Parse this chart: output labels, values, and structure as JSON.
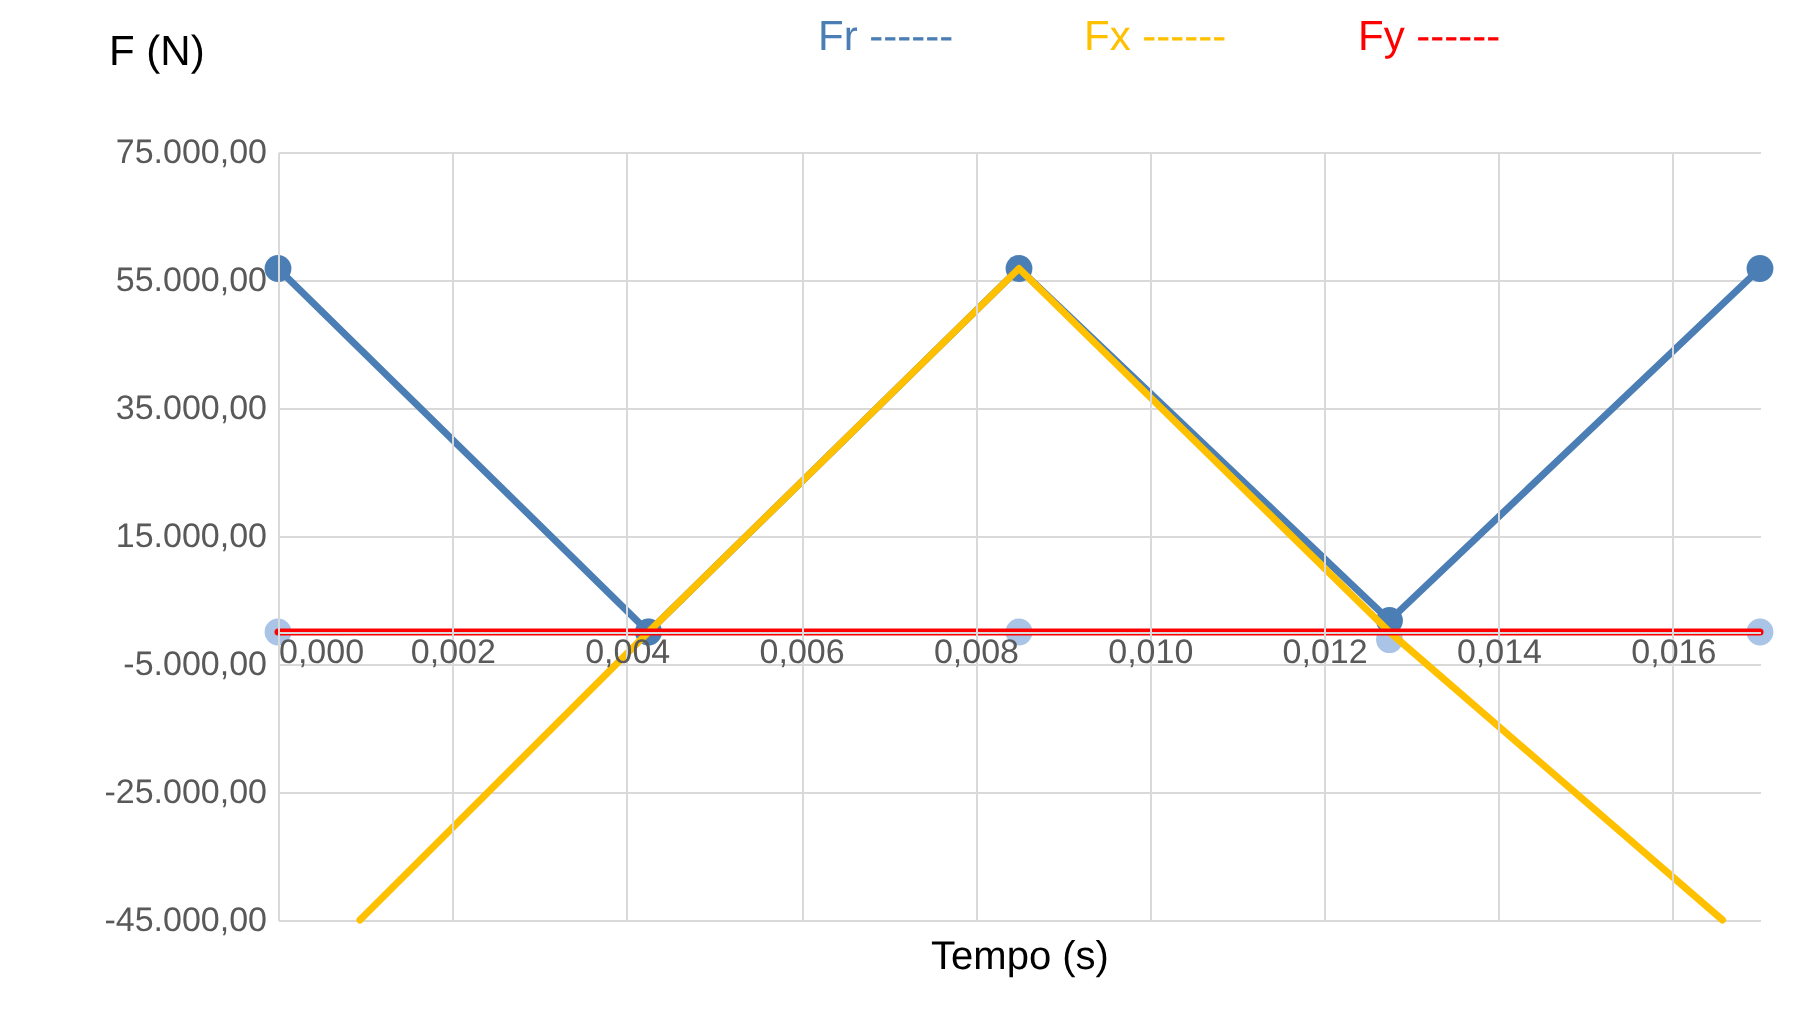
{
  "chart_data": {
    "type": "line",
    "xlabel": "Tempo (s)",
    "ylabel": "F (N)",
    "xlim": [
      0,
      0.017
    ],
    "ylim": [
      -45000,
      75000
    ],
    "xticks": [
      {
        "value": 0,
        "label": "0,000"
      },
      {
        "value": 0.002,
        "label": "0,002"
      },
      {
        "value": 0.004,
        "label": "0,004"
      },
      {
        "value": 0.006,
        "label": "0,006"
      },
      {
        "value": 0.008,
        "label": "0,008"
      },
      {
        "value": 0.01,
        "label": "0,010"
      },
      {
        "value": 0.012,
        "label": "0,012"
      },
      {
        "value": 0.014,
        "label": "0,014"
      },
      {
        "value": 0.016,
        "label": "0,016"
      }
    ],
    "yticks": [
      {
        "value": -45000,
        "label": "-45.000,00"
      },
      {
        "value": -25000,
        "label": "-25.000,00"
      },
      {
        "value": -5000,
        "label": "-5.000,00"
      },
      {
        "value": 15000,
        "label": "15.000,00"
      },
      {
        "value": 35000,
        "label": "35.000,00"
      },
      {
        "value": 55000,
        "label": "55.000,00"
      },
      {
        "value": 75000,
        "label": "75.000,00"
      }
    ],
    "grid": true,
    "legend": "top",
    "series": [
      {
        "type": "scatter",
        "color": "#a9c4e6",
        "marker": "circle",
        "x": [
          0,
          0.00425,
          0.0085,
          0.01275,
          0.017
        ],
        "values": [
          0,
          0,
          0,
          -1200,
          0
        ]
      },
      {
        "name": "Fr ------",
        "color": "#4a7eb4",
        "marker": "circle",
        "x": [
          0,
          0.00425,
          0.0085,
          0.01275,
          0.017
        ],
        "values": [
          56800,
          0,
          56800,
          1800,
          56800
        ]
      },
      {
        "name": "Fx ------",
        "color": "#ffc000",
        "marker": "none",
        "x": [
          0.00094,
          0.00425,
          0.0085,
          0.01275,
          0.01657
        ],
        "values": [
          -45000,
          0,
          56800,
          0,
          -45000
        ]
      },
      {
        "name": "Fy ------",
        "color": "#ff0000",
        "marker": "none",
        "x": [
          0,
          0.017
        ],
        "values": [
          0,
          0
        ]
      }
    ]
  }
}
